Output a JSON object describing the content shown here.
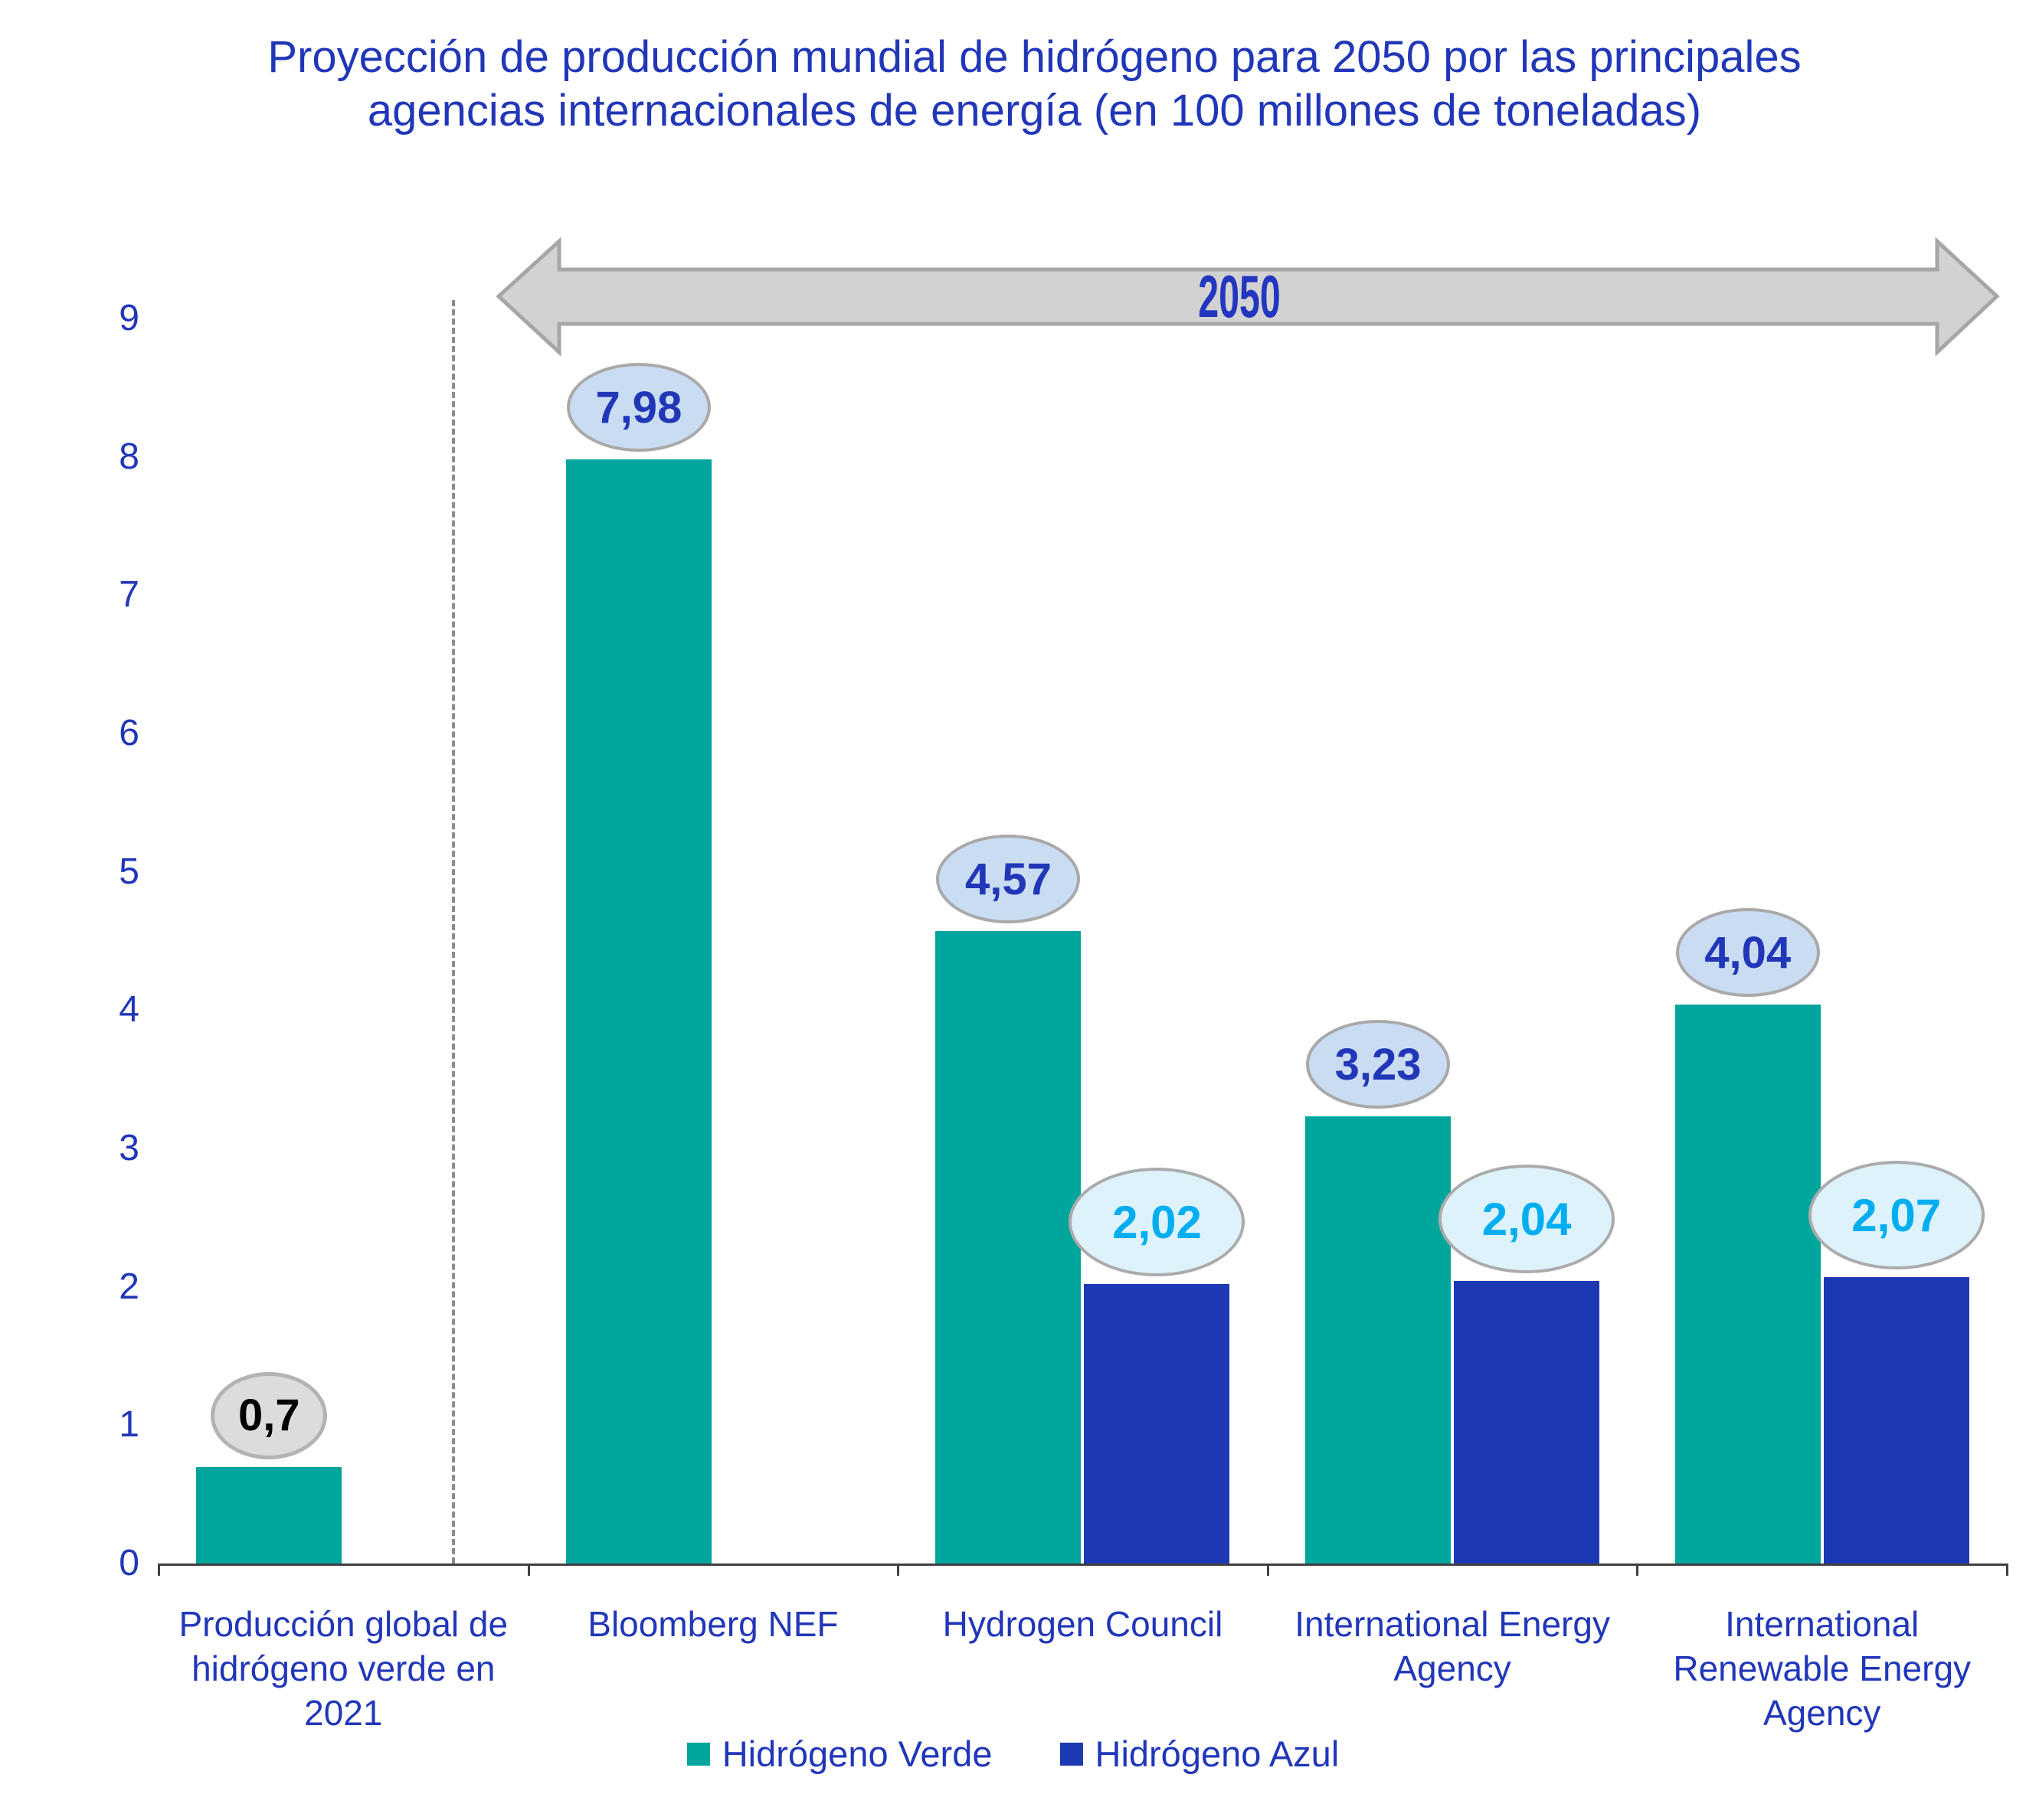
{
  "title": {
    "line1": "Proyección de producción mundial de hidrógeno para 2050 por las principales",
    "line2": "agencias internacionales de energía (en 100 millones de toneladas)"
  },
  "colors": {
    "verde_bar": "#00A69C",
    "azul_bar": "#1C39B3",
    "text_blue": "#2137B8",
    "cyan_text": "#00AEEF",
    "arrow_fill": "#D2D2D2",
    "arrow_border": "#A6A6A6"
  },
  "chart_data": {
    "type": "bar",
    "title": "Proyección de producción mundial de hidrógeno para 2050 por las principales agencias internacionales de energía (en 100 millones de toneladas)",
    "categories": [
      [
        "Producción global de",
        "hidrógeno verde en",
        "2021"
      ],
      [
        "Bloomberg NEF"
      ],
      [
        "Hydrogen Council"
      ],
      [
        "International Energy",
        "Agency"
      ],
      [
        "International",
        "Renewable Energy",
        "Agency"
      ]
    ],
    "series": [
      {
        "name": "Hidrógeno Verde",
        "color": "#00A69C",
        "values": [
          0.7,
          7.98,
          4.57,
          3.23,
          4.04
        ],
        "labels": [
          "0,7",
          "7,98",
          "4,57",
          "3,23",
          "4,04"
        ],
        "callouts": [
          "gray",
          "blue",
          "blue",
          "blue",
          "blue"
        ]
      },
      {
        "name": "Hidrógeno Azul",
        "color": "#1C39B3",
        "values": [
          null,
          null,
          2.02,
          2.04,
          2.07
        ],
        "labels": [
          null,
          null,
          "2,02",
          "2,04",
          "2,07"
        ],
        "callouts": [
          null,
          null,
          "cyan",
          "cyan",
          "cyan"
        ]
      }
    ],
    "ylim": [
      0,
      9
    ],
    "yticks": [
      0,
      1,
      2,
      3,
      4,
      5,
      6,
      7,
      8,
      9
    ],
    "grid": false,
    "legend_position": "bottom",
    "annotations": {
      "timeline_arrow_label": "2050"
    }
  }
}
